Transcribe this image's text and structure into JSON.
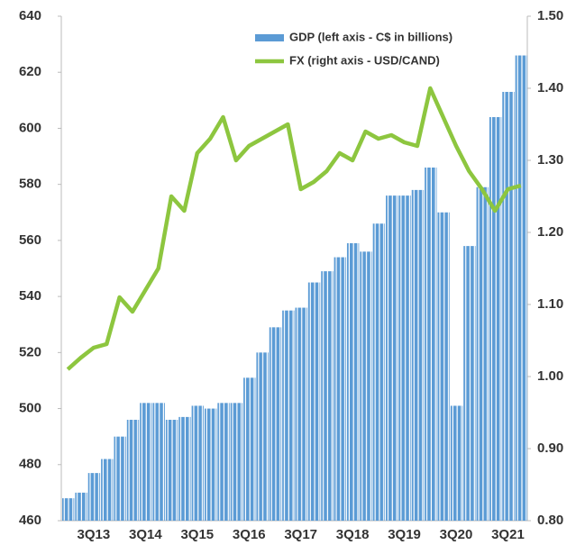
{
  "chart_data": {
    "type": "bar_line",
    "categories": [
      null,
      null,
      "3Q13",
      null,
      null,
      null,
      "3Q14",
      null,
      null,
      null,
      "3Q15",
      null,
      null,
      null,
      "3Q16",
      null,
      null,
      null,
      "3Q17",
      null,
      null,
      null,
      "3Q18",
      null,
      null,
      null,
      "3Q19",
      null,
      null,
      null,
      "3Q20",
      null,
      null,
      null,
      "3Q21",
      null
    ],
    "series": [
      {
        "name": "GDP (left axis - C$ in billions)",
        "color": "#5b9bd5",
        "type": "bar",
        "values": [
          468,
          470,
          477,
          482,
          490,
          496,
          502,
          502,
          496,
          497,
          501,
          500,
          502,
          502,
          511,
          520,
          529,
          535,
          536,
          545,
          549,
          554,
          559,
          556,
          566,
          576,
          576,
          578,
          586,
          570,
          501,
          558,
          579,
          604,
          613,
          626
        ]
      },
      {
        "name": "FX (right axis - USD/CAND)",
        "color": "#8dc63f",
        "type": "line",
        "axis": "y2",
        "values": [
          1.01,
          1.026,
          1.04,
          1.045,
          1.11,
          1.09,
          1.12,
          1.15,
          1.25,
          1.23,
          1.31,
          1.33,
          1.36,
          1.3,
          1.32,
          1.33,
          1.34,
          1.35,
          1.26,
          1.27,
          1.285,
          1.31,
          1.3,
          1.34,
          1.33,
          1.335,
          1.325,
          1.32,
          1.4,
          1.36,
          1.32,
          1.285,
          1.26,
          1.23,
          1.26,
          1.265
        ]
      }
    ],
    "ylim": [
      460,
      640
    ],
    "yticks": [
      460,
      480,
      500,
      520,
      540,
      560,
      580,
      600,
      620,
      640
    ],
    "y2lim": [
      0.8,
      1.5
    ],
    "y2ticks": [
      {
        "value": 0.8,
        "label": "0.80"
      },
      {
        "value": 0.9,
        "label": "0.90"
      },
      {
        "value": 1.0,
        "label": "1.00"
      },
      {
        "value": 1.1,
        "label": "1.10"
      },
      {
        "value": 1.2,
        "label": "1.20"
      },
      {
        "value": 1.3,
        "label": "1.30"
      },
      {
        "value": 1.4,
        "label": "1.40"
      },
      {
        "value": 1.5,
        "label": "1.50"
      }
    ],
    "legend": "top-right"
  }
}
